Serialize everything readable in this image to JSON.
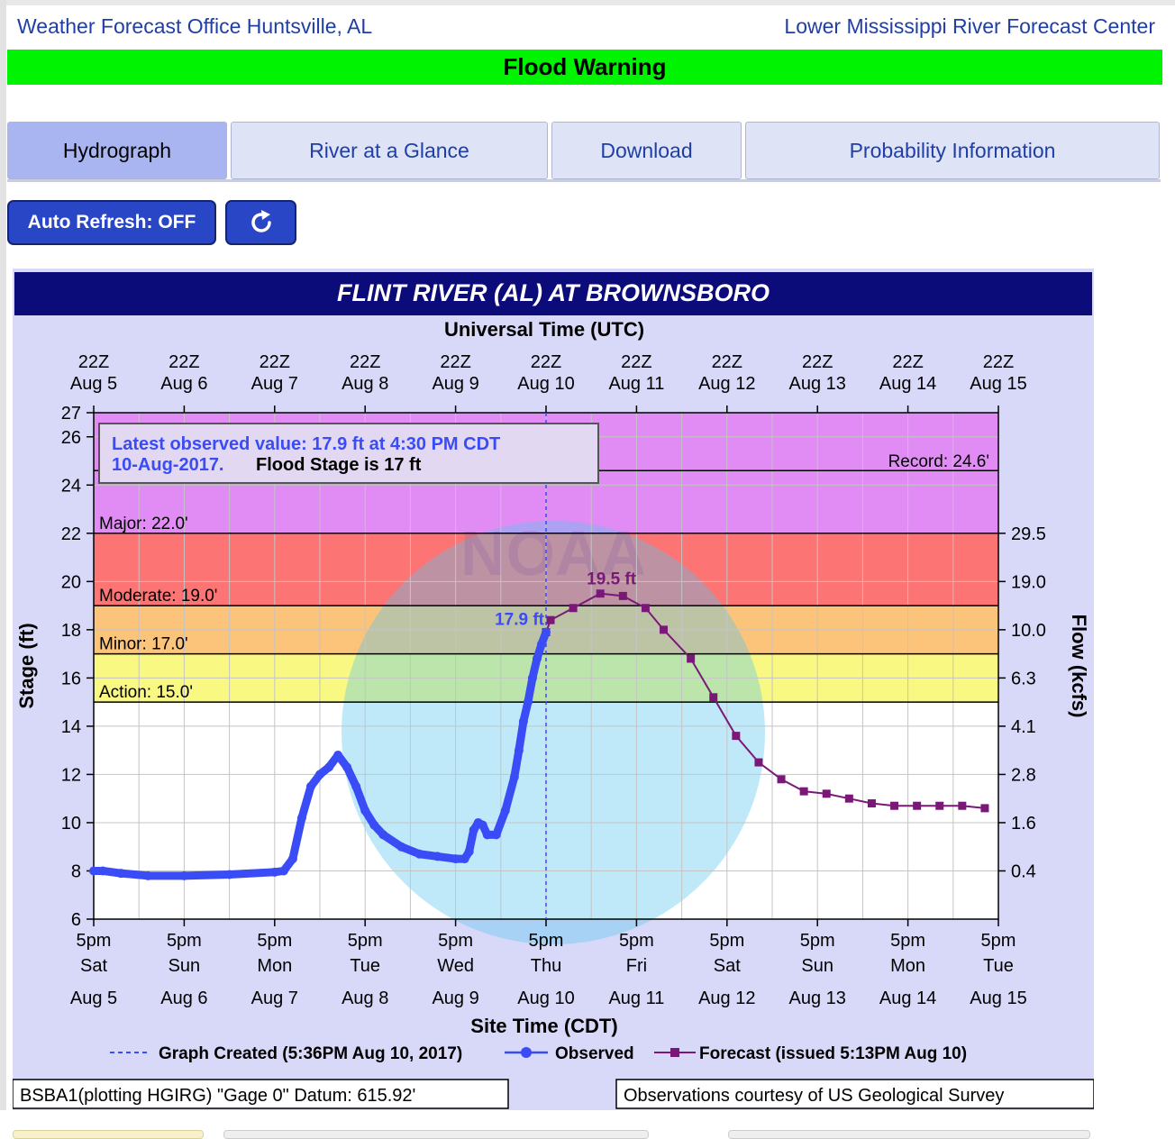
{
  "header": {
    "wfo_link": "Weather Forecast Office Huntsville, AL",
    "rfc_link": "Lower Mississippi River Forecast Center",
    "banner": "Flood Warning",
    "banner_color": "#00f300"
  },
  "tabs": [
    {
      "label": "Hydrograph",
      "active": true
    },
    {
      "label": "River at a Glance",
      "active": false
    },
    {
      "label": "Download",
      "active": false
    },
    {
      "label": "Probability Information",
      "active": false
    }
  ],
  "controls": {
    "auto_refresh_label": "Auto Refresh: OFF",
    "refresh_icon": "refresh-icon"
  },
  "chart_data": {
    "type": "line",
    "title": "FLINT RIVER (AL) AT BROWNSBORO",
    "top_axis_title": "Universal Time (UTC)",
    "bottom_axis_title": "Site Time (CDT)",
    "ylabel": "Stage (ft)",
    "y2label": "Flow (kcfs)",
    "ylim": [
      6,
      27
    ],
    "xlim": [
      0,
      10
    ],
    "utc_ticks": [
      {
        "time": "22Z",
        "date": "Aug  5"
      },
      {
        "time": "22Z",
        "date": "Aug  6"
      },
      {
        "time": "22Z",
        "date": "Aug  7"
      },
      {
        "time": "22Z",
        "date": "Aug  8"
      },
      {
        "time": "22Z",
        "date": "Aug  9"
      },
      {
        "time": "22Z",
        "date": "Aug 10"
      },
      {
        "time": "22Z",
        "date": "Aug 11"
      },
      {
        "time": "22Z",
        "date": "Aug 12"
      },
      {
        "time": "22Z",
        "date": "Aug 13"
      },
      {
        "time": "22Z",
        "date": "Aug 14"
      },
      {
        "time": "22Z",
        "date": "Aug 15"
      }
    ],
    "local_ticks": [
      {
        "time": "5pm",
        "day": "Sat",
        "date": "Aug 5"
      },
      {
        "time": "5pm",
        "day": "Sun",
        "date": "Aug 6"
      },
      {
        "time": "5pm",
        "day": "Mon",
        "date": "Aug 7"
      },
      {
        "time": "5pm",
        "day": "Tue",
        "date": "Aug 8"
      },
      {
        "time": "5pm",
        "day": "Wed",
        "date": "Aug 9"
      },
      {
        "time": "5pm",
        "day": "Thu",
        "date": "Aug 10"
      },
      {
        "time": "5pm",
        "day": "Fri",
        "date": "Aug 11"
      },
      {
        "time": "5pm",
        "day": "Sat",
        "date": "Aug 12"
      },
      {
        "time": "5pm",
        "day": "Sun",
        "date": "Aug 13"
      },
      {
        "time": "5pm",
        "day": "Mon",
        "date": "Aug 14"
      },
      {
        "time": "5pm",
        "day": "Tue",
        "date": "Aug 15"
      }
    ],
    "y_ticks": [
      6,
      8,
      10,
      12,
      14,
      16,
      18,
      20,
      22,
      24,
      26,
      27
    ],
    "flow_ticks": [
      {
        "stage": 8,
        "label": "0.4"
      },
      {
        "stage": 10,
        "label": "1.6"
      },
      {
        "stage": 12,
        "label": "2.8"
      },
      {
        "stage": 14,
        "label": "4.1"
      },
      {
        "stage": 16,
        "label": "6.3"
      },
      {
        "stage": 18,
        "label": "10.0"
      },
      {
        "stage": 20,
        "label": "19.0"
      },
      {
        "stage": 22,
        "label": "29.5"
      }
    ],
    "bands": [
      {
        "name": "Action",
        "from": 15,
        "to": 17,
        "color": "#f8f882",
        "label": "Action: 15.0'"
      },
      {
        "name": "Minor",
        "from": 17,
        "to": 19,
        "color": "#fcc47a",
        "label": "Minor: 17.0'"
      },
      {
        "name": "Moderate",
        "from": 19,
        "to": 22,
        "color": "#fc7474",
        "label": "Moderate: 19.0'"
      },
      {
        "name": "Major",
        "from": 22,
        "to": 27,
        "color": "#e08cf4",
        "label": "Major: 22.0'"
      }
    ],
    "record": {
      "value": 24.6,
      "label": "Record: 24.6'"
    },
    "observed": {
      "name": "Observed",
      "color": "#3a4cf5",
      "x": [
        0.0,
        0.1,
        0.3,
        0.6,
        1.0,
        1.5,
        2.0,
        2.1,
        2.2,
        2.3,
        2.4,
        2.5,
        2.6,
        2.7,
        2.8,
        2.9,
        3.0,
        3.1,
        3.2,
        3.4,
        3.6,
        3.8,
        4.0,
        4.1,
        4.15,
        4.2,
        4.25,
        4.3,
        4.35,
        4.45,
        4.55,
        4.65,
        4.7,
        4.75,
        4.8,
        4.85,
        4.9,
        4.95,
        5.0
      ],
      "y": [
        8.0,
        8.0,
        7.9,
        7.8,
        7.8,
        7.85,
        7.95,
        8.0,
        8.5,
        10.2,
        11.5,
        12.0,
        12.3,
        12.8,
        12.3,
        11.5,
        10.5,
        9.9,
        9.5,
        9.0,
        8.7,
        8.6,
        8.5,
        8.5,
        8.8,
        9.7,
        10.0,
        9.9,
        9.5,
        9.5,
        10.5,
        11.9,
        13.0,
        14.2,
        15.0,
        16.0,
        16.8,
        17.4,
        17.9
      ]
    },
    "forecast": {
      "name": "Forecast (issued 5:13PM Aug 10)",
      "color": "#7a1878",
      "x": [
        5.0,
        5.05,
        5.3,
        5.6,
        5.85,
        6.1,
        6.3,
        6.6,
        6.85,
        7.1,
        7.35,
        7.6,
        7.85,
        8.1,
        8.35,
        8.6,
        8.85,
        9.1,
        9.35,
        9.6,
        9.85
      ],
      "y": [
        17.9,
        18.4,
        18.9,
        19.5,
        19.4,
        18.9,
        18.0,
        16.8,
        15.2,
        13.6,
        12.5,
        11.8,
        11.3,
        11.2,
        11.0,
        10.8,
        10.7,
        10.7,
        10.7,
        10.7,
        10.6
      ]
    },
    "now_line": {
      "x": 5.0,
      "label": "Graph Created (5:36PM Aug 10, 2017)"
    },
    "observed_label": "17.9 ft",
    "crest_label": "19.5 ft",
    "info_box": {
      "line1": "Latest observed value: 17.9 ft at 4:30 PM CDT",
      "line2a": "10-Aug-2017.",
      "line2b": "Flood Stage is 17 ft"
    },
    "footer_left": "BSBA1(plotting HGIRG) \"Gage 0\" Datum: 615.92'",
    "footer_right": "Observations courtesy of US Geological Survey",
    "watermark": "NOAA"
  }
}
